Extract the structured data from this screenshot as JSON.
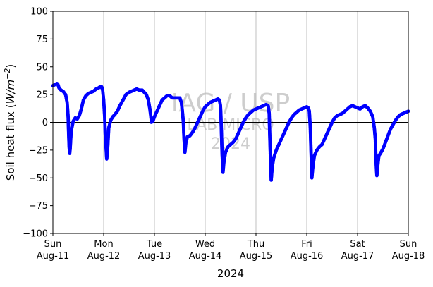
{
  "chart_data": {
    "type": "scatter",
    "title": "",
    "xlabel": "2024",
    "ylabel": "Soil heat flux (W/m⁻²)",
    "ylabel_parts": {
      "prefix": "Soil heat flux (",
      "italic": "W/m",
      "sup": "−2",
      "suffix": ")"
    },
    "ylim": [
      -100,
      100
    ],
    "yticks": [
      -100,
      -75,
      -50,
      -25,
      0,
      25,
      50,
      75,
      100
    ],
    "xlim": [
      0,
      7
    ],
    "x_unit": "days from Sun Aug-11 2024 00:00",
    "xticks": [
      {
        "day": "Sun",
        "date": "Aug-11"
      },
      {
        "day": "Mon",
        "date": "Aug-12"
      },
      {
        "day": "Tue",
        "date": "Aug-13"
      },
      {
        "day": "Wed",
        "date": "Aug-14"
      },
      {
        "day": "Thu",
        "date": "Aug-15"
      },
      {
        "day": "Fri",
        "date": "Aug-16"
      },
      {
        "day": "Sat",
        "date": "Aug-17"
      },
      {
        "day": "Sun",
        "date": "Aug-18"
      }
    ],
    "grid": "vertical",
    "zero_line": true,
    "series": [
      {
        "color": "#0000ff",
        "marker": "circle",
        "points": [
          [
            0.0,
            33
          ],
          [
            0.04,
            34
          ],
          [
            0.08,
            35
          ],
          [
            0.1,
            34
          ],
          [
            0.12,
            31
          ],
          [
            0.16,
            29
          ],
          [
            0.2,
            28
          ],
          [
            0.25,
            25
          ],
          [
            0.28,
            18
          ],
          [
            0.3,
            5
          ],
          [
            0.31,
            -10
          ],
          [
            0.32,
            -22
          ],
          [
            0.33,
            -28
          ],
          [
            0.34,
            -24
          ],
          [
            0.36,
            -8
          ],
          [
            0.4,
            1
          ],
          [
            0.44,
            4
          ],
          [
            0.48,
            3
          ],
          [
            0.52,
            6
          ],
          [
            0.56,
            12
          ],
          [
            0.6,
            20
          ],
          [
            0.65,
            24
          ],
          [
            0.7,
            26
          ],
          [
            0.75,
            27
          ],
          [
            0.8,
            28
          ],
          [
            0.85,
            30
          ],
          [
            0.9,
            31
          ],
          [
            0.93,
            32
          ],
          [
            0.96,
            32
          ],
          [
            0.98,
            29
          ],
          [
            1.0,
            20
          ],
          [
            1.02,
            5
          ],
          [
            1.03,
            -10
          ],
          [
            1.05,
            -25
          ],
          [
            1.06,
            -33
          ],
          [
            1.08,
            -22
          ],
          [
            1.1,
            -5
          ],
          [
            1.14,
            2
          ],
          [
            1.18,
            5
          ],
          [
            1.22,
            7
          ],
          [
            1.27,
            10
          ],
          [
            1.32,
            15
          ],
          [
            1.38,
            20
          ],
          [
            1.44,
            25
          ],
          [
            1.5,
            27
          ],
          [
            1.55,
            28
          ],
          [
            1.6,
            29
          ],
          [
            1.65,
            30
          ],
          [
            1.7,
            29
          ],
          [
            1.76,
            29
          ],
          [
            1.8,
            27
          ],
          [
            1.84,
            25
          ],
          [
            1.88,
            20
          ],
          [
            1.91,
            12
          ],
          [
            1.93,
            5
          ],
          [
            1.94,
            0
          ],
          [
            1.97,
            1
          ],
          [
            2.0,
            5
          ],
          [
            2.05,
            10
          ],
          [
            2.1,
            15
          ],
          [
            2.15,
            20
          ],
          [
            2.2,
            22
          ],
          [
            2.25,
            24
          ],
          [
            2.3,
            24
          ],
          [
            2.35,
            22
          ],
          [
            2.4,
            22
          ],
          [
            2.45,
            22
          ],
          [
            2.5,
            22
          ],
          [
            2.53,
            18
          ],
          [
            2.55,
            10
          ],
          [
            2.57,
            0
          ],
          [
            2.58,
            -12
          ],
          [
            2.59,
            -20
          ],
          [
            2.6,
            -27
          ],
          [
            2.62,
            -18
          ],
          [
            2.65,
            -13
          ],
          [
            2.7,
            -12
          ],
          [
            2.75,
            -9
          ],
          [
            2.8,
            -5
          ],
          [
            2.85,
            0
          ],
          [
            2.9,
            5
          ],
          [
            2.95,
            10
          ],
          [
            3.0,
            14
          ],
          [
            3.05,
            16
          ],
          [
            3.1,
            18
          ],
          [
            3.15,
            19
          ],
          [
            3.2,
            20
          ],
          [
            3.25,
            21
          ],
          [
            3.28,
            20
          ],
          [
            3.3,
            15
          ],
          [
            3.31,
            5
          ],
          [
            3.32,
            -10
          ],
          [
            3.33,
            -25
          ],
          [
            3.34,
            -35
          ],
          [
            3.35,
            -45
          ],
          [
            3.37,
            -35
          ],
          [
            3.4,
            -27
          ],
          [
            3.45,
            -22
          ],
          [
            3.5,
            -20
          ],
          [
            3.55,
            -18
          ],
          [
            3.6,
            -15
          ],
          [
            3.65,
            -10
          ],
          [
            3.7,
            -5
          ],
          [
            3.75,
            0
          ],
          [
            3.8,
            4
          ],
          [
            3.85,
            7
          ],
          [
            3.9,
            9
          ],
          [
            3.95,
            11
          ],
          [
            4.0,
            12
          ],
          [
            4.05,
            13
          ],
          [
            4.1,
            14
          ],
          [
            4.15,
            15
          ],
          [
            4.2,
            16
          ],
          [
            4.24,
            15
          ],
          [
            4.26,
            8
          ],
          [
            4.27,
            -10
          ],
          [
            4.28,
            -25
          ],
          [
            4.29,
            -40
          ],
          [
            4.3,
            -52
          ],
          [
            4.32,
            -40
          ],
          [
            4.35,
            -32
          ],
          [
            4.4,
            -25
          ],
          [
            4.45,
            -20
          ],
          [
            4.5,
            -15
          ],
          [
            4.55,
            -10
          ],
          [
            4.6,
            -5
          ],
          [
            4.65,
            0
          ],
          [
            4.7,
            4
          ],
          [
            4.75,
            7
          ],
          [
            4.8,
            9
          ],
          [
            4.85,
            11
          ],
          [
            4.9,
            12
          ],
          [
            4.95,
            13
          ],
          [
            5.0,
            14
          ],
          [
            5.03,
            13
          ],
          [
            5.05,
            10
          ],
          [
            5.07,
            -5
          ],
          [
            5.08,
            -20
          ],
          [
            5.09,
            -35
          ],
          [
            5.1,
            -50
          ],
          [
            5.12,
            -40
          ],
          [
            5.15,
            -30
          ],
          [
            5.2,
            -25
          ],
          [
            5.25,
            -22
          ],
          [
            5.3,
            -20
          ],
          [
            5.35,
            -15
          ],
          [
            5.4,
            -10
          ],
          [
            5.45,
            -5
          ],
          [
            5.5,
            0
          ],
          [
            5.55,
            4
          ],
          [
            5.6,
            6
          ],
          [
            5.65,
            7
          ],
          [
            5.7,
            8
          ],
          [
            5.75,
            10
          ],
          [
            5.8,
            12
          ],
          [
            5.85,
            14
          ],
          [
            5.9,
            15
          ],
          [
            5.95,
            14
          ],
          [
            6.0,
            13
          ],
          [
            6.05,
            12
          ],
          [
            6.1,
            14
          ],
          [
            6.15,
            15
          ],
          [
            6.2,
            13
          ],
          [
            6.25,
            10
          ],
          [
            6.3,
            5
          ],
          [
            6.33,
            -5
          ],
          [
            6.35,
            -15
          ],
          [
            6.36,
            -30
          ],
          [
            6.37,
            -40
          ],
          [
            6.38,
            -48
          ],
          [
            6.4,
            -38
          ],
          [
            6.42,
            -30
          ],
          [
            6.45,
            -28
          ],
          [
            6.5,
            -24
          ],
          [
            6.55,
            -18
          ],
          [
            6.6,
            -12
          ],
          [
            6.65,
            -6
          ],
          [
            6.7,
            -2
          ],
          [
            6.75,
            2
          ],
          [
            6.8,
            5
          ],
          [
            6.85,
            7
          ],
          [
            6.9,
            8
          ],
          [
            6.95,
            9
          ],
          [
            7.0,
            10
          ]
        ]
      }
    ]
  },
  "watermark": {
    "line1": "IAG / USP",
    "line2": "LAB MICRO",
    "line3": "2024"
  }
}
